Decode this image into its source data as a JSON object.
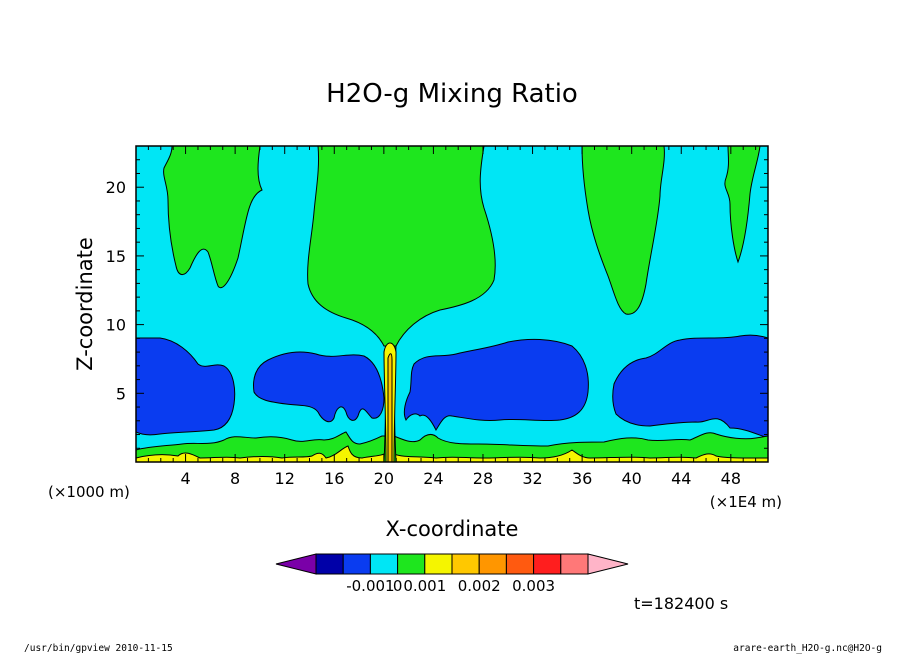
{
  "chart_data": {
    "type": "contour",
    "title": "H2O-g Mixing Ratio",
    "xlabel": "X-coordinate",
    "ylabel": "Z-coordinate",
    "x_unit": "(×1E4 m)",
    "y_unit": "(×1000 m)",
    "xlim": [
      0,
      51
    ],
    "ylim": [
      0,
      23
    ],
    "x_ticks": [
      4,
      8,
      12,
      16,
      20,
      24,
      28,
      32,
      36,
      40,
      44,
      48
    ],
    "y_ticks": [
      5,
      10,
      15,
      20
    ],
    "colorbar": {
      "tick_labels": [
        "-0.001",
        "0",
        "0.001",
        "0.002",
        "0.003"
      ],
      "colors": [
        "#7a00a8",
        "#0000a8",
        "#0a3cf0",
        "#00e6f5",
        "#1ee61e",
        "#f5f500",
        "#ffc800",
        "#ff9600",
        "#ff5a10",
        "#ff1e1e",
        "#ff7878",
        "#ffb4c8"
      ]
    },
    "annotation": "t=182400 s"
  },
  "footer": {
    "left": "/usr/bin/gpview   2010-11-15",
    "right": "arare-earth_H2O-g.nc@H2O-g"
  }
}
